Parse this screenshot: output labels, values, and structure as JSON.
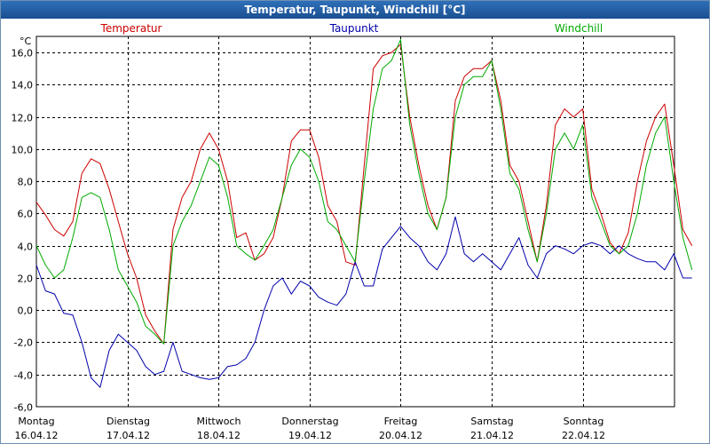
{
  "window": {
    "title": "Temperatur, Taupunkt, Windchill [°C]"
  },
  "colors": {
    "temperatur": "#cc0000",
    "taupunkt": "#0000aa",
    "windchill": "#00aa00",
    "grid": "#000000"
  },
  "chart_data": {
    "type": "line",
    "title": "Temperatur, Taupunkt, Windchill [°C]",
    "ylabel": "°C",
    "ylim": [
      -6,
      17
    ],
    "yticks": [
      -6,
      -4,
      -2,
      0,
      2,
      4,
      6,
      8,
      10,
      12,
      14,
      16
    ],
    "ytick_labels": [
      "-6,0",
      "-4,0",
      "-2,0",
      "0,0",
      "2,0",
      "4,0",
      "6,0",
      "8,0",
      "10,0",
      "12,0",
      "14,0",
      "16,0"
    ],
    "xlim": [
      0,
      7.2
    ],
    "x_ticks": [
      {
        "pos": 0,
        "day": "Montag",
        "date": "16.04.12"
      },
      {
        "pos": 1,
        "day": "Dienstag",
        "date": "17.04.12"
      },
      {
        "pos": 2,
        "day": "Mittwoch",
        "date": "18.04.12"
      },
      {
        "pos": 3,
        "day": "Donnerstag",
        "date": "19.04.12"
      },
      {
        "pos": 4,
        "day": "Freitag",
        "date": "20.04.12"
      },
      {
        "pos": 5,
        "day": "Samstag",
        "date": "21.04.12"
      },
      {
        "pos": 6,
        "day": "Sonntag",
        "date": "22.04.12"
      }
    ],
    "grid": true,
    "series": [
      {
        "name": "Temperatur",
        "color": "#cc0000",
        "x": [
          0,
          0.1,
          0.2,
          0.3,
          0.4,
          0.5,
          0.6,
          0.7,
          0.8,
          0.9,
          1.0,
          1.1,
          1.2,
          1.3,
          1.4,
          1.5,
          1.6,
          1.7,
          1.8,
          1.9,
          2.0,
          2.1,
          2.2,
          2.3,
          2.4,
          2.5,
          2.6,
          2.7,
          2.8,
          2.9,
          3.0,
          3.1,
          3.2,
          3.3,
          3.4,
          3.5,
          3.6,
          3.7,
          3.8,
          3.9,
          4.0,
          4.1,
          4.2,
          4.3,
          4.4,
          4.5,
          4.6,
          4.7,
          4.8,
          4.9,
          5.0,
          5.1,
          5.2,
          5.3,
          5.4,
          5.5,
          5.6,
          5.7,
          5.8,
          5.9,
          6.0,
          6.1,
          6.2,
          6.3,
          6.4,
          6.5,
          6.6,
          6.7,
          6.8,
          6.9,
          7.0,
          7.1,
          7.2
        ],
        "y": [
          6.7,
          5.9,
          5.0,
          4.6,
          5.5,
          8.5,
          9.4,
          9.1,
          7.5,
          5.5,
          3.5,
          2.0,
          -0.3,
          -1.3,
          -2.1,
          5.0,
          7.0,
          8.0,
          10.0,
          11.0,
          10.0,
          8.0,
          4.5,
          4.8,
          3.1,
          3.5,
          4.5,
          7.0,
          10.5,
          11.2,
          11.2,
          9.5,
          6.5,
          5.5,
          3.0,
          2.8,
          9.0,
          15.0,
          15.8,
          16.0,
          16.5,
          12.0,
          9.0,
          6.5,
          5.0,
          7.0,
          13.0,
          14.5,
          15.0,
          15.0,
          15.5,
          13.0,
          9.0,
          8.0,
          5.5,
          3.0,
          6.5,
          11.5,
          12.5,
          12.0,
          12.5,
          7.5,
          6.0,
          4.2,
          3.5,
          4.8,
          8.0,
          10.5,
          12.0,
          12.8,
          9.0,
          5.0,
          4.0
        ]
      },
      {
        "name": "Taupunkt",
        "color": "#0000aa",
        "x": [
          0,
          0.1,
          0.2,
          0.3,
          0.4,
          0.5,
          0.6,
          0.7,
          0.8,
          0.9,
          1.0,
          1.1,
          1.2,
          1.3,
          1.4,
          1.5,
          1.6,
          1.7,
          1.8,
          1.9,
          2.0,
          2.1,
          2.2,
          2.3,
          2.4,
          2.5,
          2.6,
          2.7,
          2.8,
          2.9,
          3.0,
          3.1,
          3.2,
          3.3,
          3.4,
          3.5,
          3.6,
          3.7,
          3.8,
          3.9,
          4.0,
          4.1,
          4.2,
          4.3,
          4.4,
          4.5,
          4.6,
          4.7,
          4.8,
          4.9,
          5.0,
          5.1,
          5.2,
          5.3,
          5.4,
          5.5,
          5.6,
          5.7,
          5.8,
          5.9,
          6.0,
          6.1,
          6.2,
          6.3,
          6.4,
          6.5,
          6.6,
          6.7,
          6.8,
          6.9,
          7.0,
          7.1,
          7.2
        ],
        "y": [
          2.8,
          1.2,
          1.0,
          -0.2,
          -0.3,
          -2.0,
          -4.2,
          -4.8,
          -2.5,
          -1.5,
          -2.0,
          -2.5,
          -3.5,
          -4.0,
          -3.8,
          -2.0,
          -3.8,
          -4.0,
          -4.2,
          -4.3,
          -4.2,
          -3.5,
          -3.4,
          -3.0,
          -2.0,
          0.0,
          1.5,
          2.0,
          1.0,
          1.8,
          1.5,
          0.8,
          0.5,
          0.3,
          1.0,
          3.0,
          1.5,
          1.5,
          3.8,
          4.5,
          5.2,
          4.5,
          4.0,
          3.0,
          2.5,
          3.5,
          5.8,
          3.5,
          3.0,
          3.5,
          3.0,
          2.5,
          3.5,
          4.5,
          2.8,
          2.0,
          3.5,
          4.0,
          3.8,
          3.5,
          4.0,
          4.2,
          4.0,
          3.5,
          4.0,
          3.5,
          3.2,
          3.0,
          3.0,
          2.5,
          3.5,
          2.0,
          2.0
        ]
      },
      {
        "name": "Windchill",
        "color": "#00aa00",
        "x": [
          0,
          0.1,
          0.2,
          0.3,
          0.4,
          0.5,
          0.6,
          0.7,
          0.8,
          0.9,
          1.0,
          1.1,
          1.2,
          1.3,
          1.4,
          1.5,
          1.6,
          1.7,
          1.8,
          1.9,
          2.0,
          2.1,
          2.2,
          2.3,
          2.4,
          2.5,
          2.6,
          2.7,
          2.8,
          2.9,
          3.0,
          3.1,
          3.2,
          3.3,
          3.4,
          3.5,
          3.6,
          3.7,
          3.8,
          3.9,
          4.0,
          4.1,
          4.2,
          4.3,
          4.4,
          4.5,
          4.6,
          4.7,
          4.8,
          4.9,
          5.0,
          5.1,
          5.2,
          5.3,
          5.4,
          5.5,
          5.6,
          5.7,
          5.8,
          5.9,
          6.0,
          6.1,
          6.2,
          6.3,
          6.4,
          6.5,
          6.6,
          6.7,
          6.8,
          6.9,
          7.0,
          7.1,
          7.2
        ],
        "y": [
          4.0,
          2.8,
          2.0,
          2.5,
          4.5,
          7.0,
          7.3,
          7.0,
          5.0,
          2.5,
          1.5,
          0.5,
          -1.0,
          -1.5,
          -2.1,
          4.0,
          5.5,
          6.5,
          8.0,
          9.5,
          9.0,
          7.0,
          4.0,
          3.5,
          3.1,
          4.0,
          5.0,
          7.0,
          9.0,
          10.0,
          9.5,
          8.0,
          5.5,
          5.0,
          4.0,
          3.0,
          8.0,
          12.5,
          15.0,
          15.5,
          16.8,
          11.5,
          8.5,
          6.0,
          5.0,
          7.0,
          12.0,
          14.0,
          14.5,
          14.5,
          15.5,
          12.5,
          8.5,
          7.5,
          5.0,
          3.0,
          6.0,
          10.0,
          11.0,
          10.0,
          11.5,
          7.0,
          5.5,
          4.0,
          3.5,
          4.0,
          6.0,
          9.0,
          11.0,
          12.0,
          8.0,
          4.5,
          2.5
        ]
      }
    ]
  }
}
